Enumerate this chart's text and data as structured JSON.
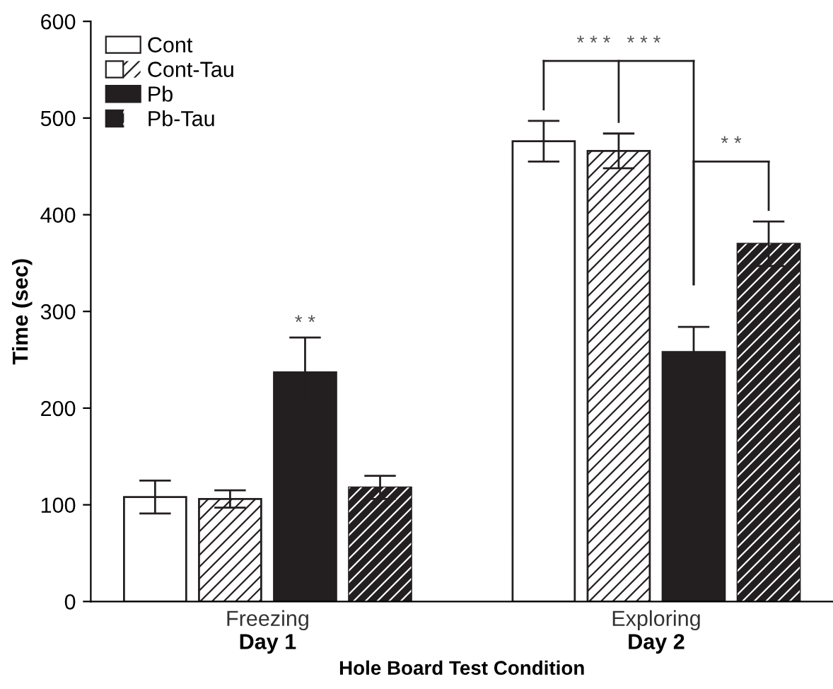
{
  "chart_data": {
    "type": "bar",
    "categories": [
      "Freezing\nDay 1",
      "Exploring\nDay 2"
    ],
    "xlabel": "Hole Board Test Condition",
    "ylabel": "Time (sec)",
    "ylim": [
      0,
      600
    ],
    "yticks": [
      0,
      100,
      200,
      300,
      400,
      500,
      600
    ],
    "series": [
      {
        "name": "Cont",
        "color": "#ffffff",
        "values": [
          108,
          476
        ],
        "errors": [
          17,
          21
        ]
      },
      {
        "name": "Cont-Tau",
        "color": "#ffffff",
        "values": [
          106,
          466
        ],
        "errors": [
          9,
          18
        ]
      },
      {
        "name": "Pb",
        "color": "#231f20",
        "values": [
          237,
          258
        ],
        "errors": [
          36,
          26
        ]
      },
      {
        "name": "Pb-Tau",
        "color": "#231f20",
        "values": [
          118,
          370
        ],
        "errors": [
          12,
          23
        ]
      }
    ],
    "annotations": [
      "* *",
      "* * *   * * *",
      "* *"
    ],
    "legend": "top left",
    "grid": false
  }
}
